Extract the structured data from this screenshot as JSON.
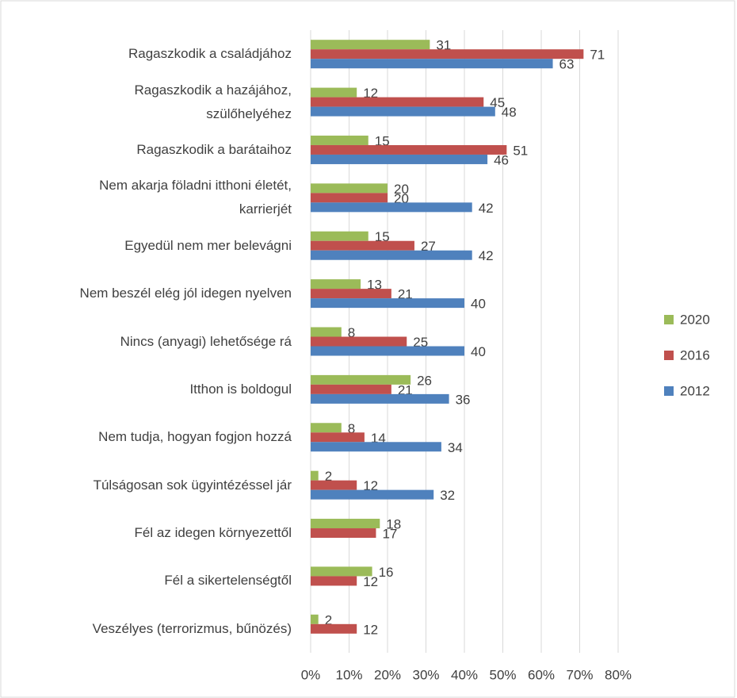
{
  "chart_data": {
    "type": "hbar",
    "categories": [
      "Ragaszkodik a családjához",
      "Ragaszkodik a hazájához,\nszülőhelyéhez",
      "Ragaszkodik a barátaihoz",
      "Nem akarja föladni itthoni életét,\nkarrierjét",
      "Egyedül nem mer belevágni",
      "Nem beszél elég jól idegen nyelven",
      "Nincs (anyagi) lehetősége rá",
      "Itthon is boldogul",
      "Nem tudja, hogyan fogjon hozzá",
      "Túlságosan sok ügyintézéssel jár",
      "Fél az idegen környezettől",
      "Fél a sikertelenségtől",
      "Veszélyes (terrorizmus, bűnözés)"
    ],
    "series": [
      {
        "name": "2020",
        "color": "#9bbb59",
        "values": [
          31,
          12,
          15,
          20,
          15,
          13,
          8,
          26,
          8,
          2,
          18,
          16,
          2
        ]
      },
      {
        "name": "2016",
        "color": "#c0504d",
        "values": [
          71,
          45,
          51,
          20,
          27,
          21,
          25,
          21,
          14,
          12,
          17,
          12,
          12
        ]
      },
      {
        "name": "2012",
        "color": "#4f81bd",
        "values": [
          63,
          48,
          46,
          42,
          42,
          40,
          40,
          36,
          34,
          32,
          null,
          null,
          null
        ]
      }
    ],
    "xlim": [
      0,
      80
    ],
    "xticks": [
      {
        "value": 0,
        "label": "0%"
      },
      {
        "value": 10,
        "label": "10%"
      },
      {
        "value": 20,
        "label": "20%"
      },
      {
        "value": 30,
        "label": "30%"
      },
      {
        "value": 40,
        "label": "40%"
      },
      {
        "value": 50,
        "label": "50%"
      },
      {
        "value": 60,
        "label": "60%"
      },
      {
        "value": 70,
        "label": "70%"
      },
      {
        "value": 80,
        "label": "80%"
      }
    ],
    "grid": true,
    "legend": "right"
  }
}
